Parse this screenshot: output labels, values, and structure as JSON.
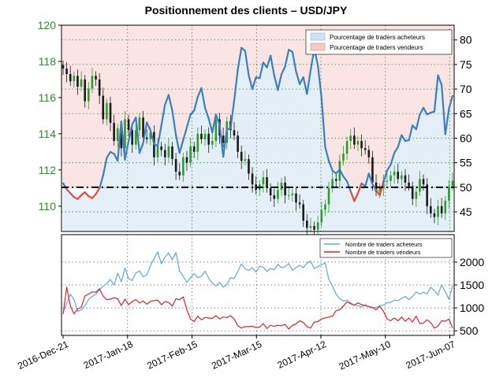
{
  "title": "Positionnement des clients – USD/JPY",
  "colors": {
    "price_axis": "#2e8b2e",
    "line_long": "#3a7fc1",
    "line_short": "#e8463c",
    "count_long": "#5aa9e6",
    "count_short": "#e0202a",
    "candle_up": "#2a9d2a",
    "candle_down": "#1a1a1a",
    "fill_long": "#e3eef8",
    "fill_short": "#fbe4e4",
    "grid": "#2a8a2a"
  },
  "x_labels": [
    "2016-Dec-21",
    "2017-Jan-18",
    "2017-Feb-15",
    "2017-Mar-15",
    "2017-Apr-12",
    "2017-May-10",
    "2017-Jun-07"
  ],
  "legend_top": {
    "long": "Pourcentage de traders acheteurs",
    "short": "Pourcentage de traders vendeurs"
  },
  "legend_bottom": {
    "long": "Nombre de traders acheteurs",
    "short": "Nombre de traders vendeurs"
  },
  "chart_data": [
    {
      "type": "line",
      "name": "price",
      "title": "Positionnement des clients – USD/JPY",
      "x_dates": [
        "2016-12-21",
        "2017-01-18",
        "2017-02-15",
        "2017-03-15",
        "2017-04-12",
        "2017-05-10",
        "2017-06-07"
      ],
      "price_ylim": [
        108.6,
        120
      ],
      "price_ticks": [
        110,
        112,
        114,
        116,
        118,
        120
      ],
      "pct_ylim": [
        41,
        83
      ],
      "pct_ticks": [
        45,
        50,
        55,
        60,
        65,
        70,
        75,
        80
      ],
      "reference_pct": 50,
      "price_close": [
        117.6,
        117.3,
        116.9,
        117.2,
        116.6,
        117.0,
        115.8,
        116.5,
        117.2,
        117.0,
        116.1,
        114.8,
        115.7,
        114.6,
        113.6,
        114.3,
        113.2,
        114.8,
        114.2,
        113.4,
        114.2,
        114.9,
        113.8,
        113.7,
        114.1,
        112.7,
        113.3,
        113.1,
        112.7,
        113.3,
        112.6,
        111.9,
        111.7,
        112.7,
        112.4,
        113.3,
        113.0,
        114.0,
        113.7,
        114.0,
        113.4,
        113.6,
        114.8,
        113.9,
        113.5,
        114.7,
        114.2,
        113.9,
        113.0,
        112.5,
        112.6,
        111.8,
        111.2,
        110.9,
        111.2,
        111.6,
        111.0,
        110.6,
        110.4,
        110.9,
        111.3,
        110.6,
        110.6,
        110.7,
        110.2,
        110.1,
        109.2,
        108.8,
        108.9,
        108.7,
        109.1,
        109.8,
        110.1,
        111.0,
        111.5,
        111.4,
        112.5,
        112.9,
        113.6,
        113.9,
        113.4,
        113.6,
        113.2,
        113.1,
        112.7,
        111.3,
        110.8,
        111.0,
        111.4,
        111.4,
        111.7,
        111.9,
        111.5,
        111.7,
        111.3,
        111.1,
        110.4,
        110.8,
        111.5,
        111.2,
        110.0,
        109.6,
        109.4,
        110.0,
        109.6,
        110.3,
        111.1,
        111.4
      ],
      "pct_long": [
        50.8,
        49.6,
        48.8,
        48.0,
        47.6,
        48.4,
        49.0,
        48.2,
        47.8,
        48.6,
        49.8,
        52.4,
        56.0,
        57.2,
        56.8,
        55.4,
        63.4,
        55.6,
        59.4,
        62.8,
        64.2,
        57.0,
        59.0,
        63.2,
        61.6,
        58.8,
        58.4,
        62.6,
        66.8,
        68.8,
        65.6,
        60.6,
        57.0,
        59.6,
        62.2,
        64.8,
        65.6,
        68.4,
        70.2,
        66.2,
        64.0,
        61.2,
        64.8,
        62.8,
        56.2,
        61.8,
        62.0,
        67.6,
        74.0,
        78.4,
        77.8,
        72.8,
        70.0,
        72.4,
        72.2,
        75.4,
        74.4,
        76.8,
        72.8,
        69.8,
        73.0,
        74.6,
        78.0,
        77.6,
        73.6,
        71.0,
        72.4,
        69.0,
        73.8,
        78.2,
        74.8,
        68.2,
        58.2,
        55.4,
        53.4,
        52.8,
        53.6,
        52.2,
        51.2,
        49.2,
        47.2,
        48.8,
        50.8,
        50.2,
        52.8,
        50.6,
        49.4,
        48.4,
        51.0,
        53.4,
        54.6,
        57.0,
        58.2,
        60.6,
        59.4,
        59.6,
        62.6,
        61.8,
        64.8,
        66.2,
        64.8,
        65.2,
        65.4,
        72.8,
        70.8,
        60.8,
        66.0,
        68.6
      ]
    },
    {
      "type": "line",
      "name": "trader_counts",
      "ylim": [
        400,
        2600
      ],
      "y_ticks": [
        500,
        1000,
        1500,
        2000
      ],
      "series": [
        {
          "name": "Nombre de traders acheteurs",
          "values": [
            900,
            1100,
            1300,
            1180,
            920,
            960,
            1050,
            1180,
            1250,
            1300,
            1400,
            1470,
            1530,
            1620,
            1500,
            1760,
            1570,
            1870,
            1640,
            1600,
            1760,
            1810,
            1680,
            1720,
            1920,
            2080,
            2220,
            1960,
            2110,
            2200,
            2050,
            2210,
            1810,
            1690,
            1560,
            1660,
            1750,
            1660,
            1690,
            1800,
            1650,
            1540,
            1480,
            1560,
            1450,
            1510,
            1660,
            1640,
            1800,
            1960,
            1850,
            1820,
            1880,
            1780,
            1910,
            1890,
            1800,
            1860,
            1830,
            1950,
            1880,
            1900,
            1970,
            1820,
            1880,
            1930,
            1880,
            1980,
            2020,
            1860,
            1900,
            1940,
            1980,
            1620,
            1480,
            1300,
            1200,
            1150,
            1170,
            1110,
            1060,
            1050,
            1020,
            1070,
            1020,
            1000,
            1010,
            1050,
            1060,
            1110,
            1120,
            1170,
            1160,
            1210,
            1250,
            1180,
            1250,
            1350,
            1300,
            1340,
            1310,
            1450,
            1380,
            1280,
            1510,
            1350,
            1190,
            1480
          ]
        },
        {
          "name": "Nombre de traders vendeurs",
          "values": [
            860,
            1450,
            1050,
            870,
            980,
            1010,
            1260,
            1300,
            1350,
            1340,
            1420,
            1260,
            1180,
            1190,
            1220,
            1200,
            1050,
            1190,
            1070,
            1140,
            1180,
            1110,
            1150,
            1080,
            1140,
            1160,
            1170,
            1070,
            1140,
            1120,
            1040,
            1200,
            1180,
            1240,
            960,
            760,
            700,
            820,
            740,
            790,
            780,
            770,
            830,
            760,
            800,
            790,
            830,
            760,
            610,
            560,
            590,
            590,
            600,
            570,
            580,
            660,
            550,
            620,
            600,
            620,
            610,
            640,
            540,
            620,
            650,
            720,
            680,
            590,
            560,
            690,
            700,
            760,
            780,
            800,
            820,
            940,
            960,
            1040,
            1130,
            1090,
            1060,
            1110,
            1070,
            1050,
            1030,
            1010,
            960,
            1030,
            930,
            760,
            720,
            780,
            720,
            800,
            710,
            780,
            690,
            820,
            660,
            670,
            740,
            680,
            560,
            600,
            720,
            710,
            760,
            560
          ]
        }
      ]
    }
  ]
}
